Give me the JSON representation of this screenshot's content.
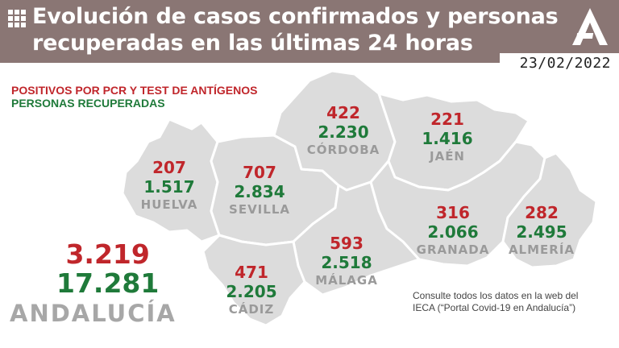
{
  "header": {
    "title_line1": "Evolución de casos confirmados y personas",
    "title_line2": "recuperadas en las últimas 24 horas",
    "date": "23/02/2022",
    "background_color": "#8a7674",
    "menu_icon": "grid-icon",
    "logo_icon": "junta-andalucia-logo"
  },
  "legend": {
    "positives": "POSITIVOS POR PCR Y TEST DE ANTÍGENOS",
    "recovered": "PERSONAS RECUPERADAS",
    "positives_color": "#c0262b",
    "recovered_color": "#1f7a3a"
  },
  "provinces": [
    {
      "name": "HUELVA",
      "positives": "207",
      "recovered": "1.517"
    },
    {
      "name": "SEVILLA",
      "positives": "707",
      "recovered": "2.834"
    },
    {
      "name": "CÓRDOBA",
      "positives": "422",
      "recovered": "2.230"
    },
    {
      "name": "JAÉN",
      "positives": "221",
      "recovered": "1.416"
    },
    {
      "name": "GRANADA",
      "positives": "316",
      "recovered": "2.066"
    },
    {
      "name": "ALMERÍA",
      "positives": "282",
      "recovered": "2.495"
    },
    {
      "name": "MÁLAGA",
      "positives": "593",
      "recovered": "2.518"
    },
    {
      "name": "CÁDIZ",
      "positives": "471",
      "recovered": "2.205"
    }
  ],
  "total": {
    "positives": "3.219",
    "recovered": "17.281",
    "label": "ANDALUCÍA"
  },
  "note": {
    "line1": "Consulte todos los datos en la web del",
    "line2": "IECA (“Portal Covid-19 en Andalucía”)"
  }
}
